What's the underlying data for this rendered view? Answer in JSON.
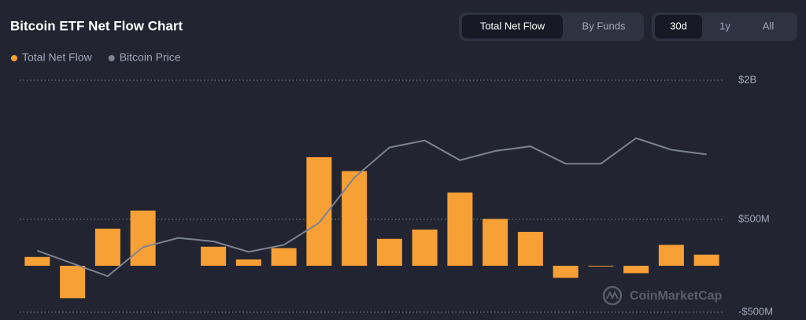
{
  "chart_data": {
    "type": "bar",
    "title": "Bitcoin ETF Net Flow Chart",
    "controls": {
      "view": [
        "Total Net Flow",
        "By Funds"
      ],
      "range": [
        "30d",
        "1y",
        "All"
      ]
    },
    "watermark": "CoinMarketCap",
    "categories": [
      null,
      null,
      null,
      null,
      null,
      null,
      null,
      null,
      null,
      null,
      null,
      null,
      null,
      null,
      null,
      null,
      null,
      null,
      null,
      null
    ],
    "series": [
      {
        "name": "Total Net Flow",
        "color": "#f7a035",
        "values": [
          95,
          -350,
          400,
          595,
          null,
          205,
          68,
          190,
          1170,
          1020,
          290,
          390,
          790,
          505,
          365,
          -130,
          -8,
          -80,
          225,
          120
        ]
      },
      {
        "name": "Bitcoin Price",
        "color": "#7d8293",
        "axis": "y2",
        "values": [
          60300,
          59200,
          58100,
          60600,
          61400,
          61100,
          60200,
          60800,
          62700,
          66600,
          69200,
          69800,
          68100,
          68900,
          69300,
          67800,
          67800,
          70000,
          69000,
          68600
        ]
      }
    ],
    "ylim": [
      -500,
      2000
    ],
    "yticks": [
      {
        "value": 2000,
        "label": "$2B"
      },
      {
        "value": 500,
        "label": "$500M"
      },
      {
        "value": -500,
        "label": "-$500M"
      }
    ],
    "y2lim": [
      55000,
      75000
    ],
    "grid": true,
    "legend": "top-left"
  }
}
